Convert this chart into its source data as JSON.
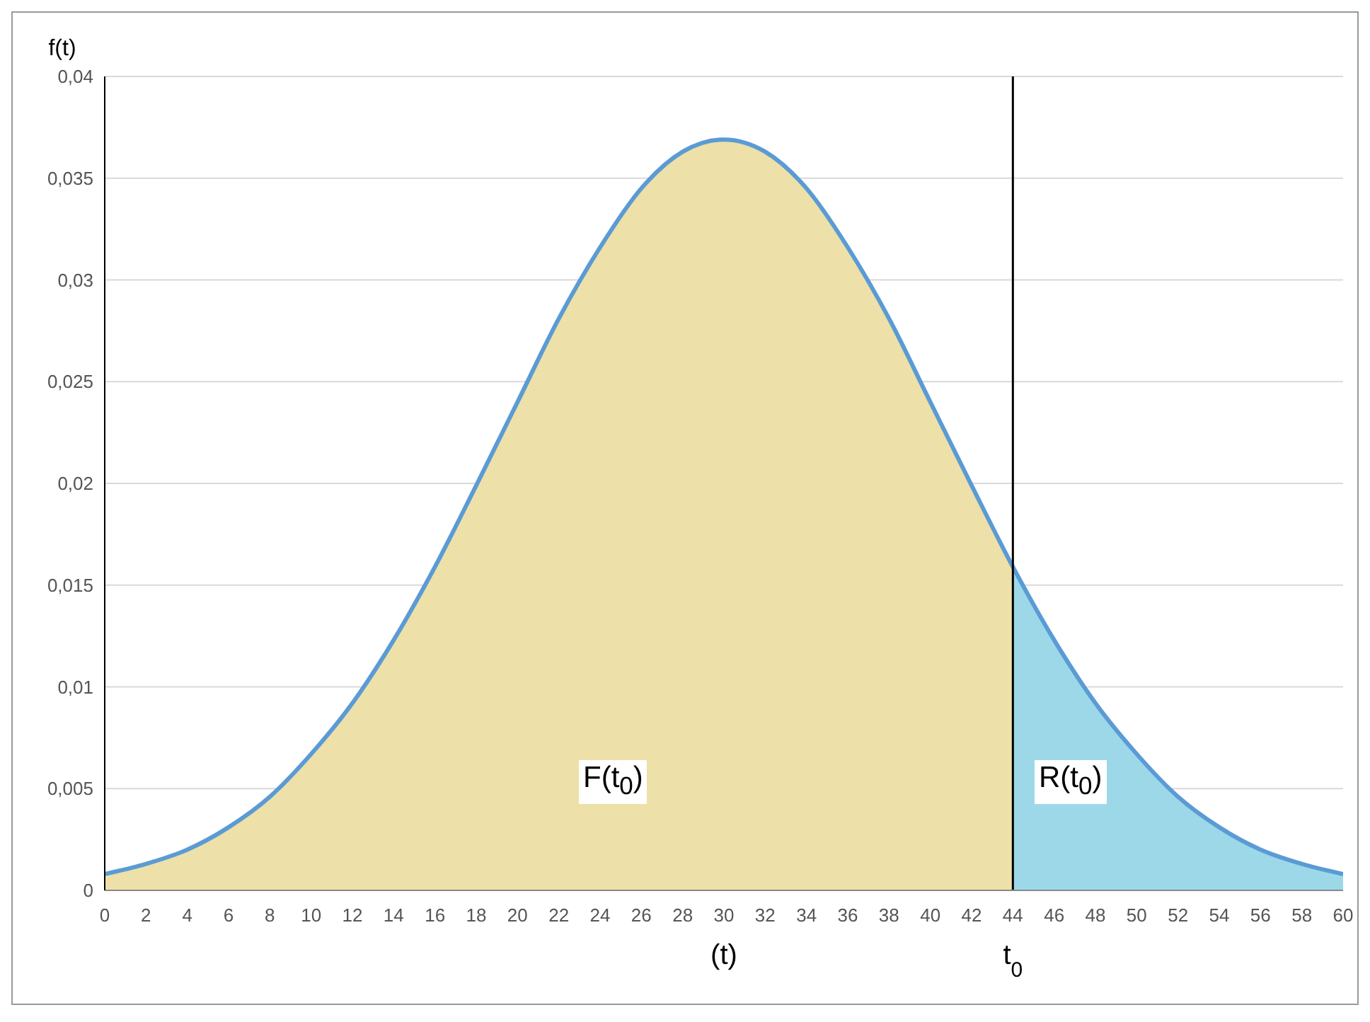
{
  "chart_data": {
    "type": "area",
    "xlabel": "(t)",
    "ylabel": "f(t)",
    "x": [
      0,
      2,
      4,
      6,
      8,
      10,
      12,
      14,
      16,
      18,
      20,
      22,
      24,
      26,
      28,
      30,
      32,
      34,
      36,
      38,
      40,
      42,
      44,
      46,
      48,
      50,
      52,
      54,
      56,
      58,
      60
    ],
    "series": [
      {
        "color": "#ede0a8",
        "values": [
          0.0008,
          0.0013,
          0.002,
          0.0031,
          0.0046,
          0.0067,
          0.0092,
          0.0123,
          0.0159,
          0.0199,
          0.024,
          0.0281,
          0.0316,
          0.0345,
          0.0363,
          0.0369,
          0.0363,
          0.0345,
          0.0316,
          0.0281,
          0.024,
          0.0199,
          0.0159,
          null,
          null,
          null,
          null,
          null,
          null,
          null,
          null
        ]
      },
      {
        "color": "#9dd8e9",
        "values": [
          null,
          null,
          null,
          null,
          null,
          null,
          null,
          null,
          null,
          null,
          null,
          null,
          null,
          null,
          null,
          null,
          null,
          null,
          null,
          null,
          null,
          null,
          0.0159,
          0.0123,
          0.0092,
          0.0067,
          0.0046,
          0.0031,
          0.002,
          0.0013,
          0.0008
        ]
      },
      {
        "type": "line",
        "color": "#5b9bd5",
        "values": [
          0.0008,
          0.0013,
          0.002,
          0.0031,
          0.0046,
          0.0067,
          0.0092,
          0.0123,
          0.0159,
          0.0199,
          0.024,
          0.0281,
          0.0316,
          0.0345,
          0.0363,
          0.0369,
          0.0363,
          0.0345,
          0.0316,
          0.0281,
          0.024,
          0.0199,
          0.0159,
          0.0123,
          0.0092,
          0.0067,
          0.0046,
          0.0031,
          0.002,
          0.0013,
          0.0008
        ]
      }
    ],
    "xlim": [
      0,
      60
    ],
    "xticks": [
      0,
      2,
      4,
      6,
      8,
      10,
      12,
      14,
      16,
      18,
      20,
      22,
      24,
      26,
      28,
      30,
      32,
      34,
      36,
      38,
      40,
      42,
      44,
      46,
      48,
      50,
      52,
      54,
      56,
      58,
      60
    ],
    "ylim": [
      0,
      0.04
    ],
    "yticks": [
      {
        "value": 0,
        "label": "0"
      },
      {
        "value": 0.005,
        "label": "0,005"
      },
      {
        "value": 0.01,
        "label": "0,01"
      },
      {
        "value": 0.015,
        "label": "0,015"
      },
      {
        "value": 0.02,
        "label": "0,02"
      },
      {
        "value": 0.025,
        "label": "0,025"
      },
      {
        "value": 0.03,
        "label": "0,03"
      },
      {
        "value": 0.035,
        "label": "0,035"
      },
      {
        "value": 0.04,
        "label": "0,04"
      }
    ],
    "grid": "y",
    "ref_lines": [
      {
        "axis": "x",
        "value": 44,
        "label": "t$_{0}$",
        "color": "#000000"
      }
    ],
    "annotations": [
      "F(t$_{0}$)",
      "R(t$_{0}$)"
    ]
  }
}
